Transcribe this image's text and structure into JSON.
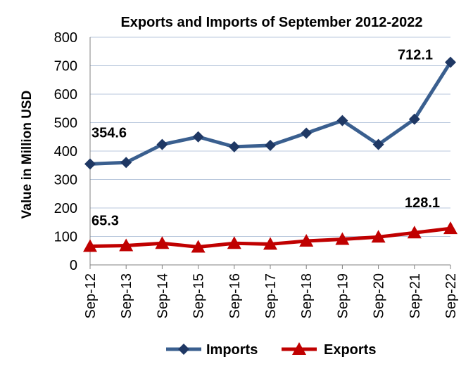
{
  "chart_data": {
    "type": "line",
    "title": "Exports and Imports of September 2012-2022",
    "xlabel": "",
    "ylabel": "Value in  Million  USD",
    "categories": [
      "Sep-12",
      "Sep-13",
      "Sep-14",
      "Sep-15",
      "Sep-16",
      "Sep-17",
      "Sep-18",
      "Sep-19",
      "Sep-20",
      "Sep-21",
      "Sep-22"
    ],
    "ylim": [
      0,
      800
    ],
    "yticks": [
      0,
      100,
      200,
      300,
      400,
      500,
      600,
      700,
      800
    ],
    "grid": true,
    "legend_position": "bottom",
    "series": [
      {
        "name": "Imports",
        "color": "#3a5f8f",
        "marker": "diamond",
        "values": [
          354.6,
          360,
          423,
          450,
          415,
          420,
          463,
          507,
          423,
          512,
          712.1
        ]
      },
      {
        "name": "Exports",
        "color": "#c00000",
        "marker": "triangle",
        "values": [
          65.3,
          68,
          76,
          63,
          76,
          73,
          84,
          90,
          98,
          113,
          128.1
        ]
      }
    ],
    "annotations": [
      {
        "series": "Imports",
        "index": 0,
        "text": "354.6"
      },
      {
        "series": "Imports",
        "index": 10,
        "text": "712.1"
      },
      {
        "series": "Exports",
        "index": 0,
        "text": "65.3"
      },
      {
        "series": "Exports",
        "index": 10,
        "text": "128.1"
      }
    ]
  }
}
